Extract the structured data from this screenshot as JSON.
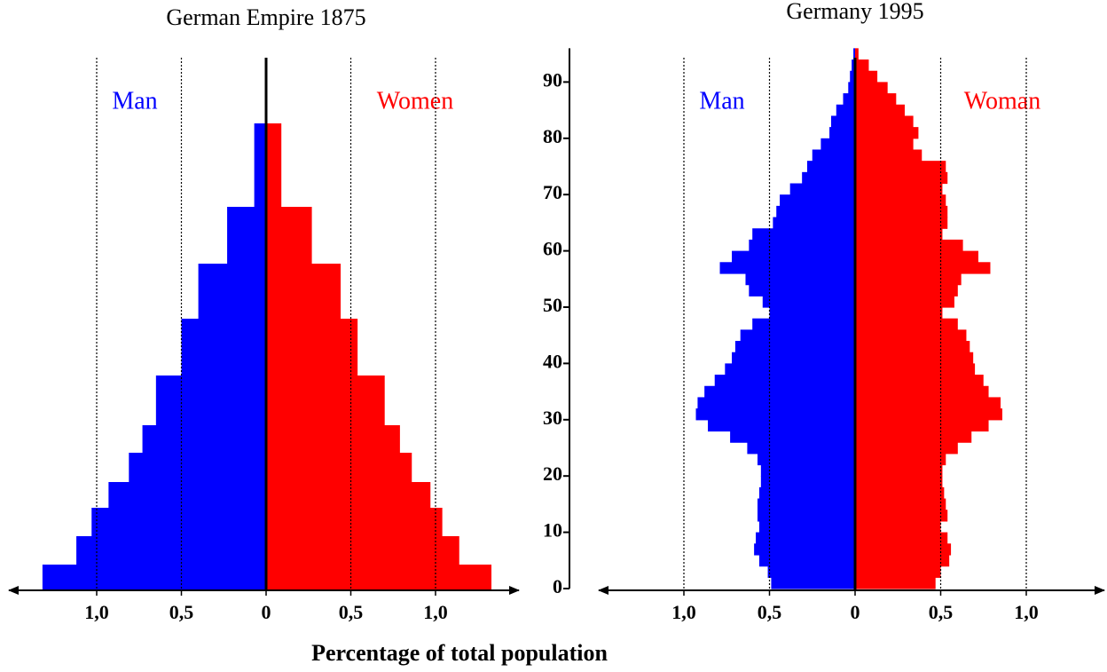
{
  "xlabel": "Percentage of total population",
  "chart_data": [
    {
      "type": "pyramid",
      "title": "German Empire 1875",
      "categories": [
        null,
        null,
        null,
        null,
        null,
        null,
        null,
        null,
        null,
        null,
        null
      ],
      "series": [
        {
          "name": "Man",
          "color": "#0000ff",
          "values": [
            1.32,
            1.12,
            1.03,
            0.93,
            0.81,
            0.73,
            0.65,
            0.5,
            0.4,
            0.23,
            0.07
          ]
        },
        {
          "name": "Women",
          "color": "#ff0000",
          "values": [
            1.33,
            1.14,
            1.04,
            0.97,
            0.86,
            0.79,
            0.7,
            0.54,
            0.44,
            0.27,
            0.09
          ]
        }
      ],
      "xlim": [
        -1.5,
        1.5
      ],
      "xticks": [
        {
          "value": -1,
          "label": "1,0"
        },
        {
          "value": -0.5,
          "label": "0,5"
        },
        0,
        {
          "value": 0.5,
          "label": "0,5"
        },
        {
          "value": 1,
          "label": "1,0"
        }
      ],
      "grid": true
    },
    {
      "type": "pyramid",
      "title": "Germany 1995",
      "x": [
        0,
        2,
        4,
        6,
        8,
        10,
        12,
        14,
        16,
        18,
        20,
        22,
        24,
        26,
        28,
        30,
        32,
        34,
        36,
        38,
        40,
        42,
        44,
        46,
        48,
        50,
        52,
        54,
        56,
        58,
        60,
        62,
        64,
        66,
        68,
        70,
        72,
        74,
        76,
        78,
        80,
        82,
        84,
        86,
        88,
        90,
        92,
        94
      ],
      "series": [
        {
          "name": "Man",
          "color": "#0000ff",
          "values": [
            0.49,
            0.51,
            0.56,
            0.59,
            0.58,
            0.56,
            0.57,
            0.57,
            0.56,
            0.55,
            0.55,
            0.57,
            0.63,
            0.73,
            0.86,
            0.93,
            0.92,
            0.88,
            0.82,
            0.76,
            0.72,
            0.7,
            0.67,
            0.6,
            0.5,
            0.54,
            0.62,
            0.64,
            0.79,
            0.72,
            0.62,
            0.6,
            0.48,
            0.46,
            0.44,
            0.38,
            0.31,
            0.28,
            0.25,
            0.2,
            0.15,
            0.14,
            0.11,
            0.07,
            0.04,
            0.03,
            0.02,
            0.01
          ]
        },
        {
          "name": "Woman",
          "color": "#ff0000",
          "values": [
            0.47,
            0.5,
            0.55,
            0.56,
            0.54,
            0.5,
            0.54,
            0.53,
            0.52,
            0.51,
            0.51,
            0.53,
            0.6,
            0.68,
            0.78,
            0.86,
            0.85,
            0.78,
            0.75,
            0.7,
            0.69,
            0.67,
            0.65,
            0.6,
            0.51,
            0.58,
            0.6,
            0.62,
            0.79,
            0.72,
            0.63,
            0.51,
            0.54,
            0.54,
            0.53,
            0.51,
            0.54,
            0.53,
            0.39,
            0.34,
            0.37,
            0.34,
            0.29,
            0.24,
            0.19,
            0.13,
            0.08,
            0.02
          ]
        }
      ],
      "xlim": [
        -1.5,
        1.5
      ],
      "xticks": [
        {
          "value": -1,
          "label": "1,0"
        },
        {
          "value": -0.5,
          "label": "0,5"
        },
        0,
        {
          "value": 0.5,
          "label": "0,5"
        },
        {
          "value": 1,
          "label": "1,0"
        }
      ],
      "ylim": [
        0,
        96
      ],
      "yticks": [
        0,
        10,
        20,
        30,
        40,
        50,
        60,
        70,
        80,
        90
      ],
      "grid": true
    }
  ]
}
